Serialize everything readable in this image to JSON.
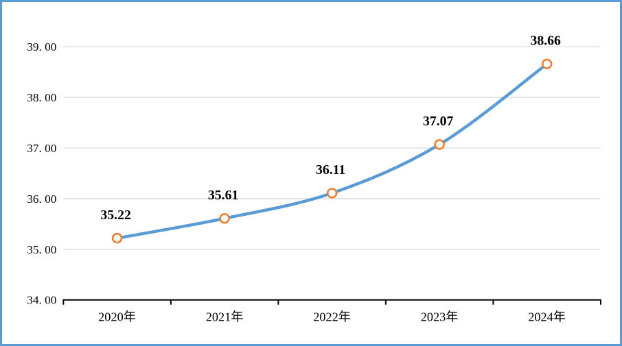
{
  "chart_data": {
    "type": "line",
    "title": "",
    "categories": [
      "2020年",
      "2021年",
      "2022年",
      "2023年",
      "2024年"
    ],
    "series": [
      {
        "name": "",
        "values": [
          35.22,
          35.61,
          36.11,
          37.07,
          38.66
        ],
        "data_labels": [
          "35.22",
          "35.61",
          "36.11",
          "37.07",
          "38.66"
        ]
      }
    ],
    "xlabel": "",
    "ylabel": "",
    "ylim": [
      34,
      39
    ],
    "y_tick_step": 1,
    "y_tick_labels": [
      "34. 00",
      "35. 00",
      "36. 00",
      "37. 00",
      "38. 00",
      "39. 00"
    ],
    "grid": true,
    "smooth_line": true,
    "legend_position": "none",
    "colors": {
      "line": "#5b9bd5",
      "marker_stroke": "#ed7d31",
      "marker_fill": "#ffffff",
      "gridline": "#d9d9d9",
      "axis_line": "#000000",
      "tick_text": "#000000",
      "data_label_text": "#000000",
      "frame_border": "#5b9bd5",
      "background": "#ffffff"
    }
  }
}
